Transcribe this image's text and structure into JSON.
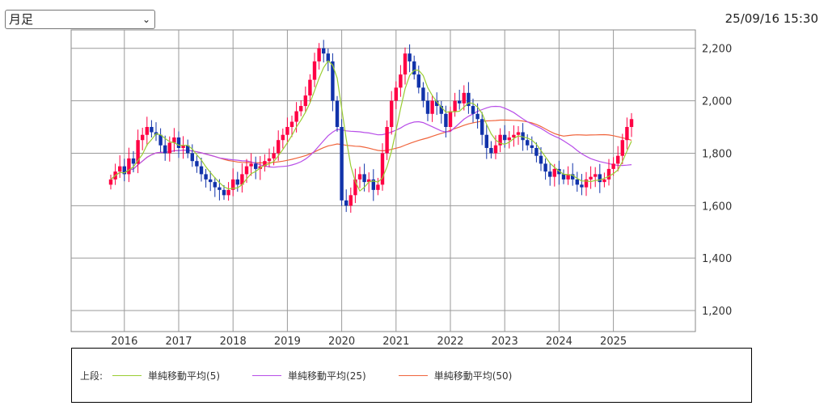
{
  "controls": {
    "period_value": "月足",
    "chevron_icon": "chevron-down-icon"
  },
  "timestamp": "25/09/16 15:30",
  "legend": {
    "title": "上段:",
    "items": [
      {
        "label": "単純移動平均(5)",
        "color": "#9acd32"
      },
      {
        "label": "単純移動平均(25)",
        "color": "#b84ee8"
      },
      {
        "label": "単純移動平均(50)",
        "color": "#f0643c"
      }
    ]
  },
  "chart_data": {
    "type": "candlestick",
    "title": "",
    "xlabel": "",
    "ylabel": "",
    "ylim": [
      1120,
      2270
    ],
    "x_start": "2015-10",
    "y_ticks": [
      1200,
      1400,
      1600,
      1800,
      2000,
      2200
    ],
    "y_tick_labels": [
      "1,200",
      "1,400",
      "1,600",
      "1,800",
      "2,000",
      "2,200"
    ],
    "x_ticks": [
      "2016",
      "2017",
      "2018",
      "2019",
      "2020",
      "2021",
      "2022",
      "2023",
      "2024",
      "2025"
    ],
    "up_color": "#ff0044",
    "down_color": "#1133aa",
    "grid": true,
    "close": [
      1700,
      1730,
      1750,
      1720,
      1780,
      1760,
      1850,
      1870,
      1900,
      1880,
      1870,
      1830,
      1800,
      1840,
      1860,
      1820,
      1830,
      1800,
      1770,
      1750,
      1720,
      1700,
      1690,
      1670,
      1660,
      1640,
      1660,
      1700,
      1680,
      1720,
      1750,
      1760,
      1740,
      1750,
      1770,
      1780,
      1800,
      1850,
      1870,
      1900,
      1920,
      1960,
      1980,
      2020,
      2080,
      2150,
      2200,
      2180,
      2150,
      2000,
      1900,
      1620,
      1600,
      1640,
      1700,
      1720,
      1690,
      1700,
      1660,
      1680,
      1800,
      1900,
      2000,
      2050,
      2100,
      2180,
      2150,
      2100,
      2050,
      2000,
      1950,
      2000,
      1980,
      1950,
      1900,
      1960,
      2000,
      1990,
      2030,
      1980,
      1950,
      1930,
      1870,
      1820,
      1800,
      1830,
      1870,
      1850,
      1860,
      1870,
      1880,
      1850,
      1830,
      1820,
      1790,
      1760,
      1730,
      1710,
      1740,
      1720,
      1700,
      1720,
      1700,
      1680,
      1670,
      1700,
      1710,
      1720,
      1690,
      1700,
      1740,
      1760,
      1790,
      1850,
      1900,
      1930
    ],
    "series": [
      {
        "name": "単純移動平均(5)",
        "values": []
      },
      {
        "name": "単純移動平均(25)",
        "values": []
      },
      {
        "name": "単純移動平均(50)",
        "values": []
      }
    ]
  }
}
